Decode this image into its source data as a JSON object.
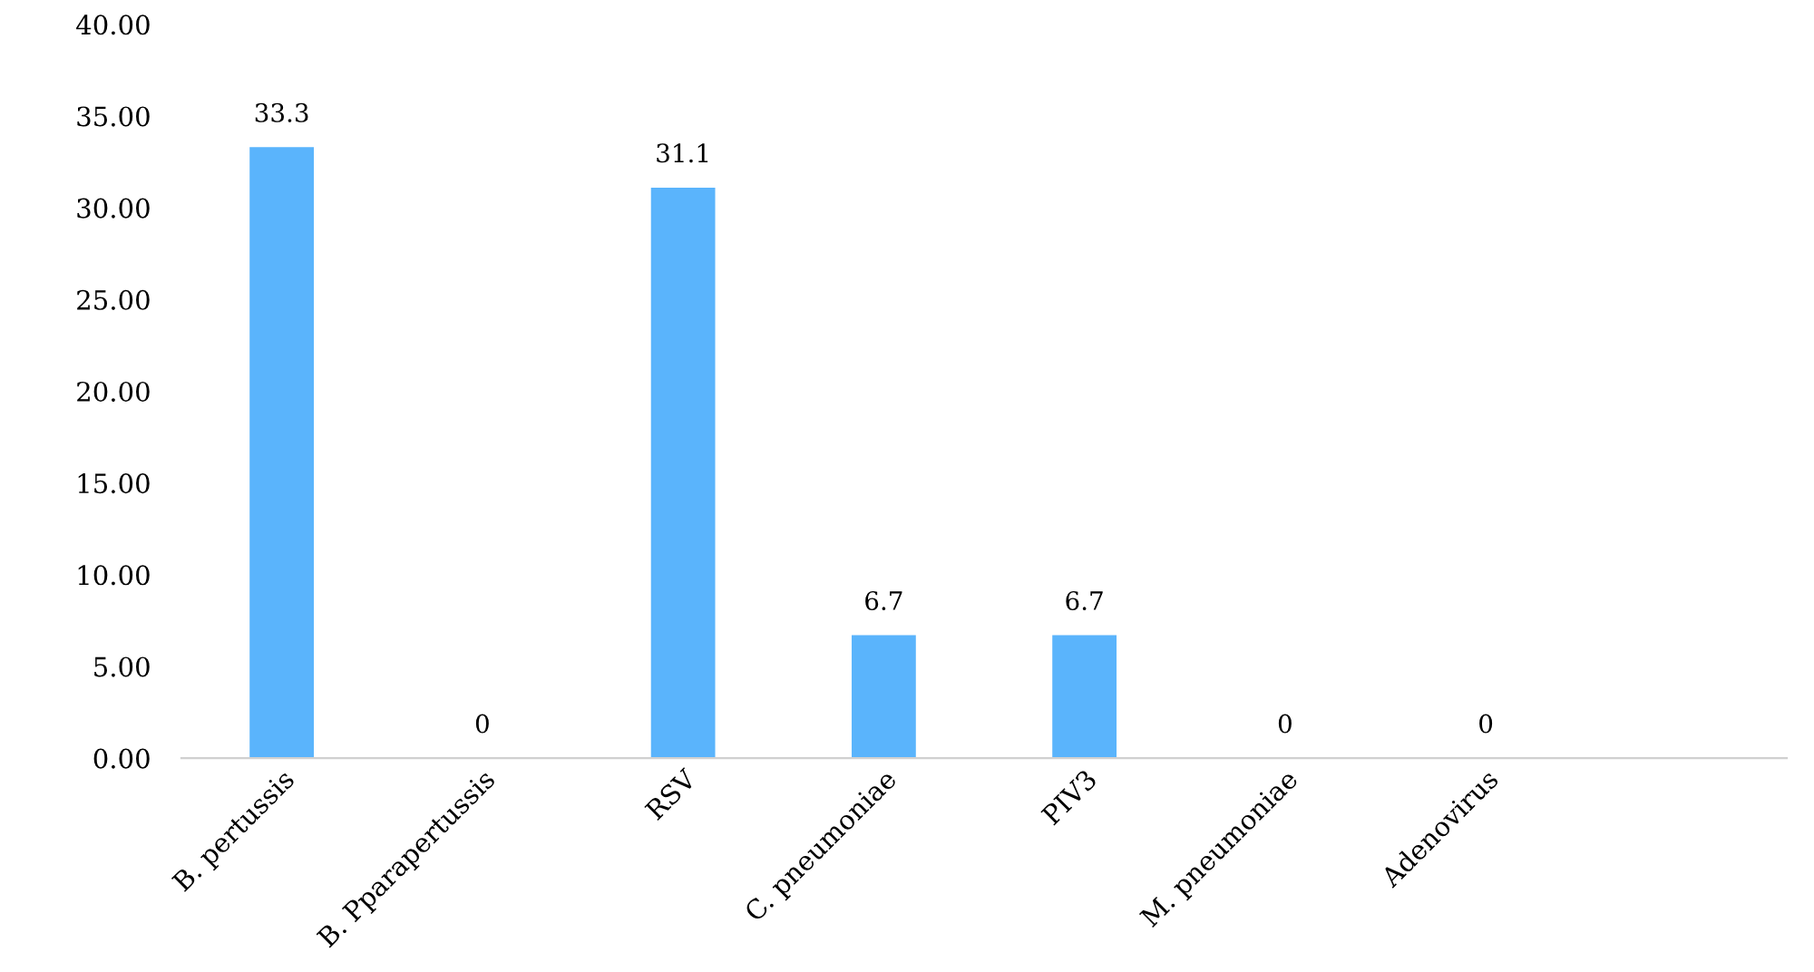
{
  "chart_data": {
    "type": "bar",
    "categories": [
      "B. pertussis",
      "B. Pparapertussis",
      "RSV",
      "C. pneumoniae",
      "PIV3",
      "M. pneumoniae",
      "Adenovirus",
      null
    ],
    "values": [
      33.3,
      0,
      31.1,
      6.7,
      6.7,
      0,
      0,
      null
    ],
    "color": "#5ab4fc",
    "ylim": [
      0,
      40
    ],
    "yticks": [
      {
        "value": 0,
        "label": "0.00"
      },
      {
        "value": 5,
        "label": "5.00"
      },
      {
        "value": 10,
        "label": "10.00"
      },
      {
        "value": 15,
        "label": "15.00"
      },
      {
        "value": 20,
        "label": "20.00"
      },
      {
        "value": 25,
        "label": "25.00"
      },
      {
        "value": 30,
        "label": "30.00"
      },
      {
        "value": 35,
        "label": "35.00"
      },
      {
        "value": 40,
        "label": "40.00"
      }
    ],
    "data_labels": true
  }
}
